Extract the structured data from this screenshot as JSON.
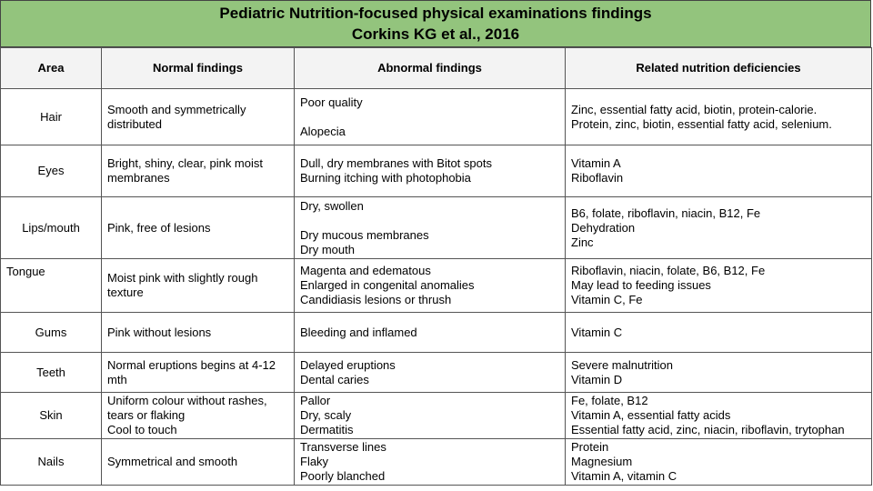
{
  "title": {
    "line1": "Pediatric Nutrition-focused physical examinations findings",
    "line2": "Corkins KG et al., 2016"
  },
  "headers": {
    "area": "Area",
    "normal": "Normal findings",
    "abnormal": "Abnormal findings",
    "deficiencies": "Related nutrition deficiencies"
  },
  "rows": [
    {
      "area": "Hair",
      "normal": [
        "Smooth and symmetrically",
        "distributed"
      ],
      "abnormal": [
        "Poor quality",
        "",
        "Alopecia"
      ],
      "deficiencies": [
        "Zinc, essential fatty acid, biotin, protein-calorie.",
        "Protein, zinc, biotin, essential fatty acid, selenium."
      ]
    },
    {
      "area": "Eyes",
      "normal": [
        "Bright, shiny, clear, pink moist",
        "membranes"
      ],
      "abnormal": [
        "Dull, dry membranes with Bitot spots",
        "Burning itching with photophobia"
      ],
      "deficiencies": [
        "Vitamin A",
        "Riboflavin"
      ]
    },
    {
      "area": "Lips/mouth",
      "normal": [
        "Pink, free of lesions"
      ],
      "abnormal": [
        "Dry, swollen",
        "",
        "Dry mucous membranes",
        "Dry mouth"
      ],
      "deficiencies": [
        "B6, folate, riboflavin, niacin, B12, Fe",
        "Dehydration",
        "Zinc"
      ]
    },
    {
      "area": "Tongue",
      "normal": [
        "Moist pink with slightly rough",
        "texture"
      ],
      "abnormal": [
        "Magenta and edematous",
        "Enlarged in congenital anomalies",
        "Candidiasis lesions or thrush"
      ],
      "deficiencies": [
        "Riboflavin, niacin, folate, B6, B12, Fe",
        "May lead to feeding issues",
        "Vitamin C, Fe"
      ]
    },
    {
      "area": "Gums",
      "normal": [
        "Pink without lesions"
      ],
      "abnormal": [
        "Bleeding and inflamed"
      ],
      "deficiencies": [
        "Vitamin C"
      ]
    },
    {
      "area": "Teeth",
      "normal": [
        "Normal eruptions begins at 4-12",
        "mth"
      ],
      "abnormal": [
        "Delayed eruptions",
        "Dental caries"
      ],
      "deficiencies": [
        "Severe malnutrition",
        "Vitamin D"
      ]
    },
    {
      "area": "Skin",
      "normal": [
        "Uniform colour without rashes,",
        "tears or flaking",
        "Cool to touch"
      ],
      "abnormal": [
        "Pallor",
        "Dry, scaly",
        "Dermatitis"
      ],
      "deficiencies": [
        "Fe, folate, B12",
        "Vitamin A, essential fatty acids",
        "Essential fatty acid, zinc, niacin, riboflavin, trytophan"
      ]
    },
    {
      "area": "Nails",
      "normal": [
        "Symmetrical and smooth"
      ],
      "abnormal": [
        "Transverse lines",
        "Flaky",
        "Poorly blanched"
      ],
      "deficiencies": [
        "Protein",
        "Magnesium",
        "Vitamin A, vitamin C"
      ]
    }
  ]
}
